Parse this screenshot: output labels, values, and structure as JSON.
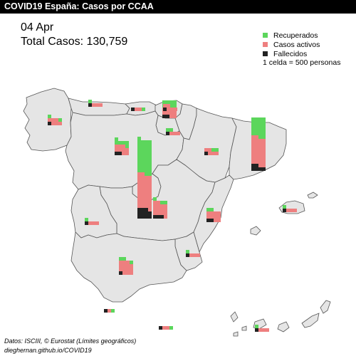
{
  "header": {
    "title": "COVID19 España: Casos por CCAA"
  },
  "summary": {
    "date": "04 Apr",
    "total": "Total Casos: 130,759"
  },
  "legend": {
    "items": [
      {
        "label": "Recuperados",
        "color": "#5cd65c"
      },
      {
        "label": "Casos activos",
        "color": "#ee7f7f"
      },
      {
        "label": "Fallecidos",
        "color": "#222222"
      }
    ],
    "note": "1 celda = 500 personas"
  },
  "footer": {
    "source": "Datos: ISCIII, © Eurostat (Límites geográficos)",
    "credit": "dieghernan.github.io/COVID19"
  },
  "chart_data": {
    "type": "waffle-map",
    "unit": 500,
    "regions": [
      {
        "name": "Galicia",
        "recovered": 1000,
        "active": 3000,
        "deceased": 500
      },
      {
        "name": "Asturias",
        "recovered": 500,
        "active": 1500,
        "deceased": 500
      },
      {
        "name": "Cantabria",
        "recovered": 500,
        "active": 1000,
        "deceased": 500
      },
      {
        "name": "País Vasco",
        "recovered": 4500,
        "active": 4500,
        "deceased": 1000
      },
      {
        "name": "Navarra",
        "recovered": 500,
        "active": 2500,
        "deceased": 500
      },
      {
        "name": "La Rioja",
        "recovered": 1000,
        "active": 1500,
        "deceased": 500
      },
      {
        "name": "Castilla y León",
        "recovered": 3000,
        "active": 4500,
        "deceased": 1000
      },
      {
        "name": "Aragón",
        "recovered": 1000,
        "active": 2500,
        "deceased": 500
      },
      {
        "name": "Cataluña",
        "recovered": 11000,
        "active": 16000,
        "deceased": 3000
      },
      {
        "name": "Madrid",
        "recovered": 19500,
        "active": 19500,
        "deceased": 5500
      },
      {
        "name": "Castilla-La Mancha",
        "recovered": 1500,
        "active": 7500,
        "deceased": 1500
      },
      {
        "name": "Extremadura",
        "recovered": 500,
        "active": 1500,
        "deceased": 500
      },
      {
        "name": "Comunitat Valenciana",
        "recovered": 1000,
        "active": 5000,
        "deceased": 1000
      },
      {
        "name": "Región de Murcia",
        "recovered": 500,
        "active": 1500,
        "deceased": 500
      },
      {
        "name": "Andalucía",
        "recovered": 1500,
        "active": 7000,
        "deceased": 500
      },
      {
        "name": "Illes Balears",
        "recovered": 500,
        "active": 1500,
        "deceased": 500
      },
      {
        "name": "Canarias",
        "recovered": 500,
        "active": 1500,
        "deceased": 500
      },
      {
        "name": "Ceuta",
        "recovered": 500,
        "active": 500,
        "deceased": 500
      },
      {
        "name": "Melilla",
        "recovered": 500,
        "active": 1000,
        "deceased": 500
      }
    ]
  }
}
